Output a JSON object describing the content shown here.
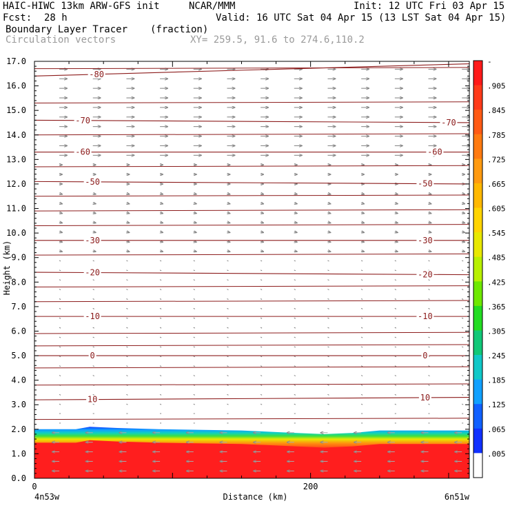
{
  "header": {
    "title": "HAIC-HIWC 13km ARW-GFS init",
    "org": "NCAR/MMM",
    "init": "Init: 12 UTC Fri 03 Apr 15",
    "fcst_label": "Fcst:",
    "fcst_value": "28 h",
    "valid": "Valid: 16 UTC Sat 04 Apr 15 (13 LST Sat 04 Apr 15)",
    "field": "Boundary Layer Tracer",
    "field_units": "(fraction)",
    "overlay": "Circulation vectors",
    "xy": "XY= 259.5, 91.6 to 274.6,110.2"
  },
  "chart_data": {
    "type": "heatmap",
    "description_fields": [
      "Boundary Layer Tracer (fraction)",
      "Circulation vectors",
      "temperature contours"
    ],
    "xlabel": "Distance (km)",
    "ylabel": "Height (km)",
    "xlim": [
      0,
      315
    ],
    "ylim": [
      0,
      17
    ],
    "x_ticks": [
      0,
      200
    ],
    "x_endpoint_labels": [
      "4n53w",
      "6n51w"
    ],
    "y_ticks": [
      "0.0",
      "1.0",
      "2.0",
      "3.0",
      "4.0",
      "5.0",
      "6.0",
      "7.0",
      "8.0",
      "9.0",
      "10.0",
      "11.0",
      "12.0",
      "13.0",
      "14.0",
      "15.0",
      "16.0",
      "17.0"
    ],
    "tracer_top_km": [
      [
        0,
        2.0
      ],
      [
        30,
        2.0
      ],
      [
        40,
        2.1
      ],
      [
        60,
        2.05
      ],
      [
        90,
        2.0
      ],
      [
        150,
        1.95
      ],
      [
        190,
        1.85
      ],
      [
        210,
        1.8
      ],
      [
        230,
        1.85
      ],
      [
        250,
        1.95
      ],
      [
        280,
        1.95
      ],
      [
        315,
        1.95
      ]
    ],
    "contours": [
      {
        "label": "-80",
        "y0": 16.4,
        "y1": 16.9,
        "label_x": [
          45
        ]
      },
      {
        "label": "-70",
        "y0": 14.6,
        "y1": 14.5,
        "label_x": [
          35,
          300
        ]
      },
      {
        "label": "-60",
        "y0": 13.3,
        "y1": 13.3,
        "label_x": [
          35,
          290
        ]
      },
      {
        "label": "-50",
        "y0": 12.1,
        "y1": 12.0,
        "label_x": [
          42,
          283
        ]
      },
      {
        "label": "-30",
        "y0": 9.7,
        "y1": 9.7,
        "label_x": [
          42,
          283
        ]
      },
      {
        "label": "-20",
        "y0": 8.4,
        "y1": 8.3,
        "label_x": [
          42,
          283
        ]
      },
      {
        "label": "-10",
        "y0": 6.6,
        "y1": 6.6,
        "label_x": [
          42,
          283
        ]
      },
      {
        "label": "0",
        "y0": 5.0,
        "y1": 5.0,
        "label_x": [
          42,
          283
        ]
      },
      {
        "label": "10",
        "y0": 3.2,
        "y1": 3.3,
        "label_x": [
          42,
          283
        ]
      }
    ],
    "unlabeled_contour_heights": [
      16.7,
      15.3,
      14.0,
      12.7,
      11.5,
      10.9,
      10.3,
      9.1,
      7.8,
      7.2,
      5.9,
      5.4,
      4.5,
      3.8,
      2.4
    ],
    "colorbar": {
      "labels": [
        "-",
        ".905",
        ".845",
        ".785",
        ".725",
        ".665",
        ".605",
        ".545",
        ".485",
        ".425",
        ".365",
        ".305",
        ".245",
        ".185",
        ".125",
        ".065",
        ".005"
      ],
      "colors": [
        "#ff1a1a",
        "#ff3a1a",
        "#ff5a14",
        "#ff7a10",
        "#ff9a10",
        "#ffb800",
        "#ffd400",
        "#e8e800",
        "#b8f000",
        "#6ee800",
        "#22dc22",
        "#10c878",
        "#10c8c8",
        "#10a0ff",
        "#1060ff",
        "#1030ff",
        "#ffffff"
      ]
    }
  }
}
